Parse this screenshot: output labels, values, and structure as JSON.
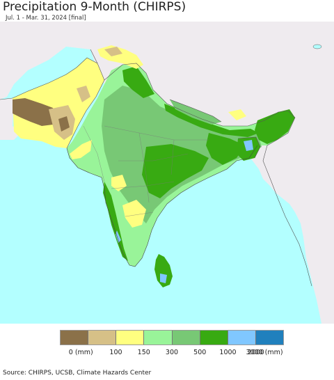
{
  "title": "Precipitation 9-Month (CHIRPS)",
  "subtitle": "Jul. 1 - Mar. 31, 2024 [final]",
  "source": "Source: CHIRPS, UCSB, Climate Hazards Center",
  "legend": {
    "colors": [
      "#8b7149",
      "#d6c087",
      "#ffff80",
      "#99f499",
      "#78c875",
      "#38aa12",
      "#80c7ff",
      "#2080bd"
    ],
    "ticks": [
      "0 (mm)",
      "100",
      "150",
      "300",
      "500",
      "1000",
      "2000",
      "3000 (mm)"
    ]
  },
  "map": {
    "ocean_color": "#b3ffff",
    "outside_land_color": "#efebef"
  }
}
